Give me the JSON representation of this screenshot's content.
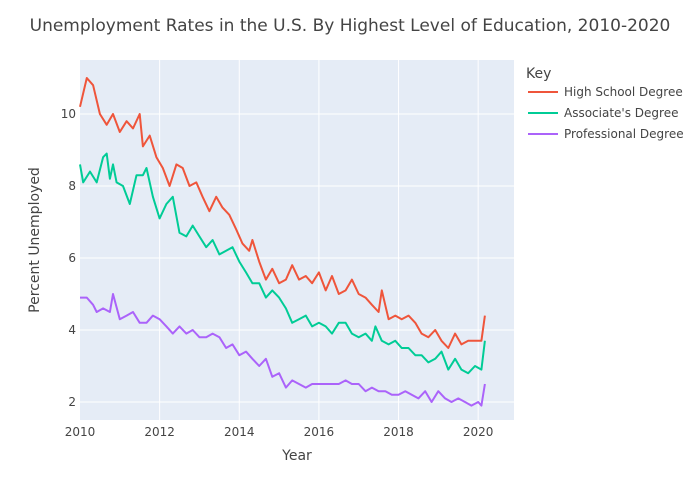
{
  "chart_data": {
    "type": "line",
    "title": "Unemployment Rates in the U.S. By Highest Level of Education, 2010-2020",
    "xlabel": "Year",
    "ylabel": "Percent Unemployed",
    "xlim": [
      2010,
      2020.9
    ],
    "ylim": [
      1.5,
      11.5
    ],
    "x_ticks": [
      2010,
      2012,
      2014,
      2016,
      2018,
      2020
    ],
    "y_ticks": [
      2,
      4,
      6,
      8,
      10
    ],
    "grid": true,
    "legend": {
      "title": "Key",
      "placement": "right"
    },
    "series": [
      {
        "name": "High School Degree",
        "color": "#EF553B",
        "points": [
          [
            2010.0,
            10.2
          ],
          [
            2010.17,
            11.0
          ],
          [
            2010.33,
            10.8
          ],
          [
            2010.5,
            10.0
          ],
          [
            2010.67,
            9.7
          ],
          [
            2010.83,
            10.0
          ],
          [
            2011.0,
            9.5
          ],
          [
            2011.17,
            9.8
          ],
          [
            2011.33,
            9.6
          ],
          [
            2011.5,
            10.0
          ],
          [
            2011.58,
            9.1
          ],
          [
            2011.75,
            9.4
          ],
          [
            2011.92,
            8.8
          ],
          [
            2012.08,
            8.5
          ],
          [
            2012.25,
            8.0
          ],
          [
            2012.42,
            8.6
          ],
          [
            2012.58,
            8.5
          ],
          [
            2012.75,
            8.0
          ],
          [
            2012.92,
            8.1
          ],
          [
            2013.08,
            7.7
          ],
          [
            2013.25,
            7.3
          ],
          [
            2013.42,
            7.7
          ],
          [
            2013.58,
            7.4
          ],
          [
            2013.75,
            7.2
          ],
          [
            2013.92,
            6.8
          ],
          [
            2014.08,
            6.4
          ],
          [
            2014.25,
            6.2
          ],
          [
            2014.33,
            6.5
          ],
          [
            2014.5,
            5.9
          ],
          [
            2014.67,
            5.4
          ],
          [
            2014.83,
            5.7
          ],
          [
            2015.0,
            5.3
          ],
          [
            2015.17,
            5.4
          ],
          [
            2015.33,
            5.8
          ],
          [
            2015.5,
            5.4
          ],
          [
            2015.67,
            5.5
          ],
          [
            2015.83,
            5.3
          ],
          [
            2016.0,
            5.6
          ],
          [
            2016.17,
            5.1
          ],
          [
            2016.33,
            5.5
          ],
          [
            2016.5,
            5.0
          ],
          [
            2016.67,
            5.1
          ],
          [
            2016.83,
            5.4
          ],
          [
            2017.0,
            5.0
          ],
          [
            2017.17,
            4.9
          ],
          [
            2017.33,
            4.7
          ],
          [
            2017.5,
            4.5
          ],
          [
            2017.58,
            5.1
          ],
          [
            2017.75,
            4.3
          ],
          [
            2017.92,
            4.4
          ],
          [
            2018.08,
            4.3
          ],
          [
            2018.25,
            4.4
          ],
          [
            2018.42,
            4.2
          ],
          [
            2018.58,
            3.9
          ],
          [
            2018.75,
            3.8
          ],
          [
            2018.92,
            4.0
          ],
          [
            2019.08,
            3.7
          ],
          [
            2019.25,
            3.5
          ],
          [
            2019.42,
            3.9
          ],
          [
            2019.58,
            3.6
          ],
          [
            2019.75,
            3.7
          ],
          [
            2019.92,
            3.7
          ],
          [
            2020.08,
            3.7
          ],
          [
            2020.17,
            4.4
          ]
        ]
      },
      {
        "name": "Associate's Degree",
        "color": "#00CC96",
        "points": [
          [
            2010.0,
            8.6
          ],
          [
            2010.08,
            8.1
          ],
          [
            2010.25,
            8.4
          ],
          [
            2010.42,
            8.1
          ],
          [
            2010.58,
            8.8
          ],
          [
            2010.67,
            8.9
          ],
          [
            2010.75,
            8.2
          ],
          [
            2010.83,
            8.6
          ],
          [
            2010.92,
            8.1
          ],
          [
            2011.08,
            8.0
          ],
          [
            2011.25,
            7.5
          ],
          [
            2011.42,
            8.3
          ],
          [
            2011.58,
            8.3
          ],
          [
            2011.67,
            8.5
          ],
          [
            2011.83,
            7.7
          ],
          [
            2012.0,
            7.1
          ],
          [
            2012.17,
            7.5
          ],
          [
            2012.33,
            7.7
          ],
          [
            2012.5,
            6.7
          ],
          [
            2012.67,
            6.6
          ],
          [
            2012.83,
            6.9
          ],
          [
            2013.0,
            6.6
          ],
          [
            2013.17,
            6.3
          ],
          [
            2013.33,
            6.5
          ],
          [
            2013.5,
            6.1
          ],
          [
            2013.67,
            6.2
          ],
          [
            2013.83,
            6.3
          ],
          [
            2014.0,
            5.9
          ],
          [
            2014.17,
            5.6
          ],
          [
            2014.33,
            5.3
          ],
          [
            2014.5,
            5.3
          ],
          [
            2014.67,
            4.9
          ],
          [
            2014.83,
            5.1
          ],
          [
            2015.0,
            4.9
          ],
          [
            2015.17,
            4.6
          ],
          [
            2015.33,
            4.2
          ],
          [
            2015.5,
            4.3
          ],
          [
            2015.67,
            4.4
          ],
          [
            2015.83,
            4.1
          ],
          [
            2016.0,
            4.2
          ],
          [
            2016.17,
            4.1
          ],
          [
            2016.33,
            3.9
          ],
          [
            2016.5,
            4.2
          ],
          [
            2016.67,
            4.2
          ],
          [
            2016.83,
            3.9
          ],
          [
            2017.0,
            3.8
          ],
          [
            2017.17,
            3.9
          ],
          [
            2017.33,
            3.7
          ],
          [
            2017.42,
            4.1
          ],
          [
            2017.58,
            3.7
          ],
          [
            2017.75,
            3.6
          ],
          [
            2017.92,
            3.7
          ],
          [
            2018.08,
            3.5
          ],
          [
            2018.25,
            3.5
          ],
          [
            2018.42,
            3.3
          ],
          [
            2018.58,
            3.3
          ],
          [
            2018.75,
            3.1
          ],
          [
            2018.92,
            3.2
          ],
          [
            2019.08,
            3.4
          ],
          [
            2019.25,
            2.9
          ],
          [
            2019.42,
            3.2
          ],
          [
            2019.58,
            2.9
          ],
          [
            2019.75,
            2.8
          ],
          [
            2019.92,
            3.0
          ],
          [
            2020.08,
            2.9
          ],
          [
            2020.17,
            3.7
          ]
        ]
      },
      {
        "name": "Professional Degree",
        "color": "#AB63FA",
        "points": [
          [
            2010.0,
            4.9
          ],
          [
            2010.17,
            4.9
          ],
          [
            2010.33,
            4.7
          ],
          [
            2010.42,
            4.5
          ],
          [
            2010.58,
            4.6
          ],
          [
            2010.75,
            4.5
          ],
          [
            2010.83,
            5.0
          ],
          [
            2011.0,
            4.3
          ],
          [
            2011.17,
            4.4
          ],
          [
            2011.33,
            4.5
          ],
          [
            2011.5,
            4.2
          ],
          [
            2011.67,
            4.2
          ],
          [
            2011.83,
            4.4
          ],
          [
            2012.0,
            4.3
          ],
          [
            2012.17,
            4.1
          ],
          [
            2012.33,
            3.9
          ],
          [
            2012.5,
            4.1
          ],
          [
            2012.67,
            3.9
          ],
          [
            2012.83,
            4.0
          ],
          [
            2013.0,
            3.8
          ],
          [
            2013.17,
            3.8
          ],
          [
            2013.33,
            3.9
          ],
          [
            2013.5,
            3.8
          ],
          [
            2013.67,
            3.5
          ],
          [
            2013.83,
            3.6
          ],
          [
            2014.0,
            3.3
          ],
          [
            2014.17,
            3.4
          ],
          [
            2014.33,
            3.2
          ],
          [
            2014.5,
            3.0
          ],
          [
            2014.67,
            3.2
          ],
          [
            2014.83,
            2.7
          ],
          [
            2015.0,
            2.8
          ],
          [
            2015.17,
            2.4
          ],
          [
            2015.33,
            2.6
          ],
          [
            2015.5,
            2.5
          ],
          [
            2015.67,
            2.4
          ],
          [
            2015.83,
            2.5
          ],
          [
            2016.0,
            2.5
          ],
          [
            2016.17,
            2.5
          ],
          [
            2016.33,
            2.5
          ],
          [
            2016.5,
            2.5
          ],
          [
            2016.67,
            2.6
          ],
          [
            2016.83,
            2.5
          ],
          [
            2017.0,
            2.5
          ],
          [
            2017.17,
            2.3
          ],
          [
            2017.33,
            2.4
          ],
          [
            2017.5,
            2.3
          ],
          [
            2017.67,
            2.3
          ],
          [
            2017.83,
            2.2
          ],
          [
            2018.0,
            2.2
          ],
          [
            2018.17,
            2.3
          ],
          [
            2018.33,
            2.2
          ],
          [
            2018.5,
            2.1
          ],
          [
            2018.67,
            2.3
          ],
          [
            2018.83,
            2.0
          ],
          [
            2019.0,
            2.3
          ],
          [
            2019.17,
            2.1
          ],
          [
            2019.33,
            2.0
          ],
          [
            2019.5,
            2.1
          ],
          [
            2019.67,
            2.0
          ],
          [
            2019.83,
            1.9
          ],
          [
            2020.0,
            2.0
          ],
          [
            2020.08,
            1.9
          ],
          [
            2020.17,
            2.5
          ]
        ]
      }
    ]
  }
}
